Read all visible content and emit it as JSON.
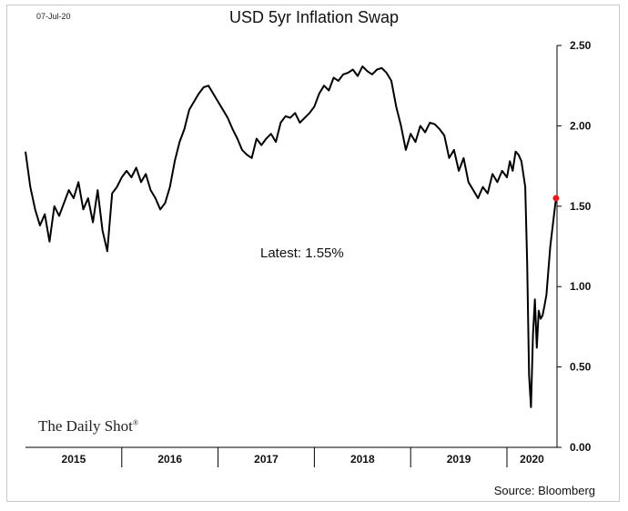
{
  "header": {
    "date": "07-Jul-20",
    "title": "USD 5yr Inflation Swap"
  },
  "annotation": {
    "latest_label": "Latest:  1.55%"
  },
  "footer": {
    "source": "Source: Bloomberg",
    "logo_text": "The Daily Shot",
    "logo_mark": "®"
  },
  "colors": {
    "line": "#000000",
    "latest_marker": "#e8191b",
    "axis": "#000000"
  },
  "chart_data": {
    "type": "line",
    "title": "USD 5yr Inflation Swap",
    "xlabel": "",
    "ylabel": "",
    "ylim": [
      0,
      2.5
    ],
    "yticks": [
      "0.00",
      "0.50",
      "1.00",
      "1.50",
      "2.00",
      "2.50"
    ],
    "yaxis_side": "right",
    "xlim": [
      2015.0,
      2020.52
    ],
    "year_labels": [
      "2015",
      "2016",
      "2017",
      "2018",
      "2019",
      "2020"
    ],
    "grid": false,
    "series": [
      {
        "name": "",
        "x": [
          2015.0,
          2015.05,
          2015.1,
          2015.15,
          2015.2,
          2015.25,
          2015.3,
          2015.35,
          2015.4,
          2015.45,
          2015.5,
          2015.55,
          2015.6,
          2015.65,
          2015.7,
          2015.75,
          2015.8,
          2015.85,
          2015.9,
          2015.95,
          2016.0,
          2016.05,
          2016.1,
          2016.15,
          2016.2,
          2016.25,
          2016.3,
          2016.35,
          2016.4,
          2016.45,
          2016.5,
          2016.55,
          2016.6,
          2016.65,
          2016.7,
          2016.75,
          2016.8,
          2016.85,
          2016.9,
          2016.95,
          2017.0,
          2017.05,
          2017.1,
          2017.15,
          2017.2,
          2017.25,
          2017.3,
          2017.35,
          2017.4,
          2017.45,
          2017.5,
          2017.55,
          2017.6,
          2017.65,
          2017.7,
          2017.75,
          2017.8,
          2017.85,
          2017.9,
          2017.95,
          2018.0,
          2018.05,
          2018.1,
          2018.15,
          2018.2,
          2018.25,
          2018.3,
          2018.35,
          2018.4,
          2018.45,
          2018.5,
          2018.55,
          2018.6,
          2018.65,
          2018.7,
          2018.75,
          2018.8,
          2018.85,
          2018.9,
          2018.95,
          2019.0,
          2019.05,
          2019.1,
          2019.15,
          2019.2,
          2019.25,
          2019.3,
          2019.35,
          2019.4,
          2019.45,
          2019.5,
          2019.55,
          2019.6,
          2019.65,
          2019.7,
          2019.75,
          2019.8,
          2019.85,
          2019.9,
          2019.95,
          2020.0,
          2020.03,
          2020.06,
          2020.09,
          2020.12,
          2020.15,
          2020.17,
          2020.19,
          2020.21,
          2020.23,
          2020.25,
          2020.27,
          2020.29,
          2020.31,
          2020.33,
          2020.35,
          2020.37,
          2020.39,
          2020.41,
          2020.43,
          2020.45,
          2020.47,
          2020.49,
          2020.51
        ],
        "y": [
          1.84,
          1.62,
          1.48,
          1.38,
          1.45,
          1.28,
          1.5,
          1.44,
          1.52,
          1.6,
          1.55,
          1.65,
          1.48,
          1.55,
          1.4,
          1.6,
          1.35,
          1.22,
          1.58,
          1.62,
          1.68,
          1.72,
          1.68,
          1.74,
          1.65,
          1.7,
          1.6,
          1.55,
          1.48,
          1.52,
          1.62,
          1.78,
          1.9,
          1.98,
          2.1,
          2.15,
          2.2,
          2.24,
          2.25,
          2.2,
          2.15,
          2.1,
          2.05,
          1.98,
          1.92,
          1.85,
          1.82,
          1.8,
          1.92,
          1.88,
          1.92,
          1.95,
          1.9,
          2.02,
          2.06,
          2.05,
          2.08,
          2.02,
          2.05,
          2.08,
          2.12,
          2.2,
          2.25,
          2.22,
          2.3,
          2.28,
          2.32,
          2.33,
          2.35,
          2.31,
          2.37,
          2.34,
          2.32,
          2.35,
          2.36,
          2.33,
          2.28,
          2.12,
          2.0,
          1.85,
          1.95,
          1.9,
          2.0,
          1.96,
          2.02,
          2.01,
          1.98,
          1.94,
          1.8,
          1.85,
          1.72,
          1.8,
          1.65,
          1.6,
          1.55,
          1.62,
          1.58,
          1.7,
          1.65,
          1.72,
          1.68,
          1.78,
          1.72,
          1.84,
          1.82,
          1.78,
          1.7,
          1.62,
          1.15,
          0.45,
          0.25,
          0.7,
          0.92,
          0.62,
          0.85,
          0.8,
          0.82,
          0.88,
          0.95,
          1.1,
          1.25,
          1.35,
          1.45,
          1.55
        ]
      }
    ],
    "latest": {
      "x": 2020.51,
      "y": 1.55
    }
  }
}
